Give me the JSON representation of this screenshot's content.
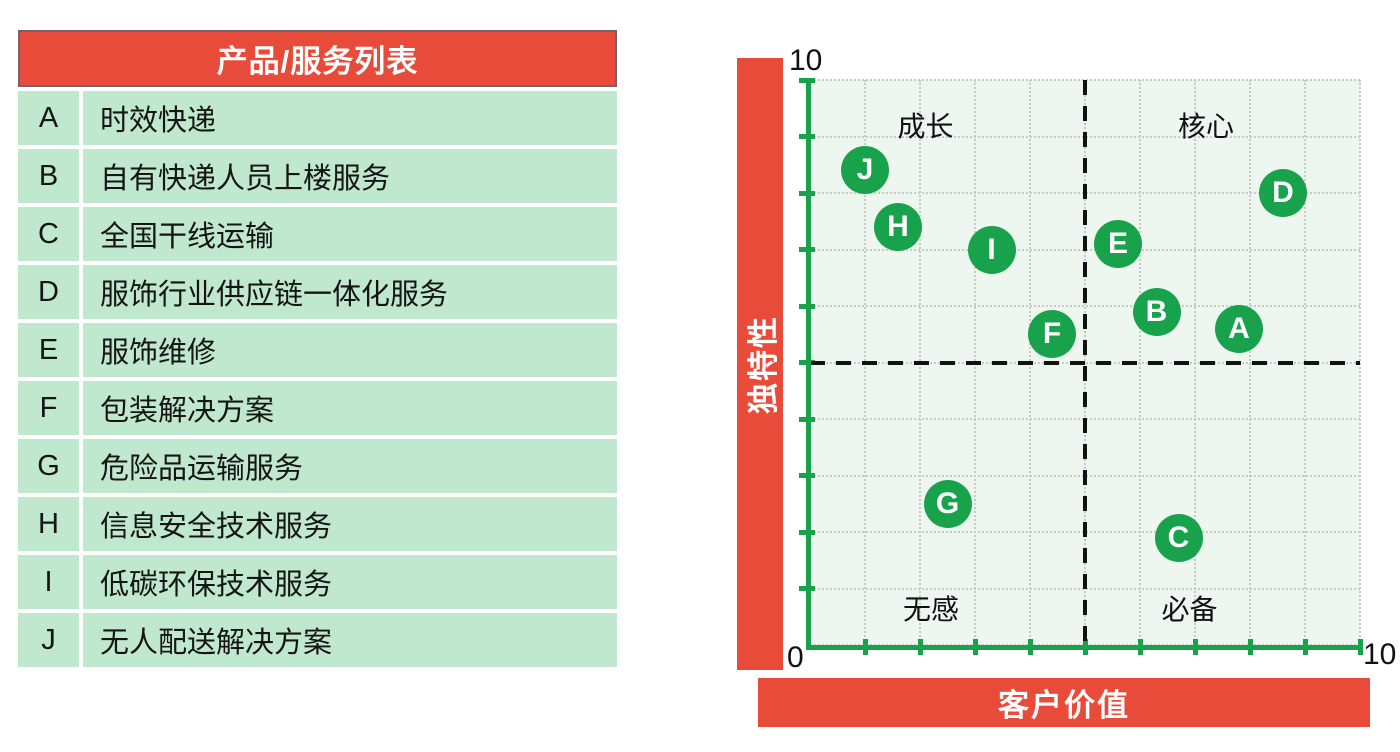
{
  "table": {
    "header": "产品/服务列表",
    "rows": [
      {
        "key": "A",
        "label": "时效快递"
      },
      {
        "key": "B",
        "label": "自有快递人员上楼服务"
      },
      {
        "key": "C",
        "label": "全国干线运输"
      },
      {
        "key": "D",
        "label": "服饰行业供应链一体化服务"
      },
      {
        "key": "E",
        "label": "服饰维修"
      },
      {
        "key": "F",
        "label": "包装解决方案"
      },
      {
        "key": "G",
        "label": "危险品运输服务"
      },
      {
        "key": "H",
        "label": "信息安全技术服务"
      },
      {
        "key": "I",
        "label": "低碳环保技术服务"
      },
      {
        "key": "J",
        "label": "无人配送解决方案"
      }
    ]
  },
  "chart_data": {
    "type": "scatter",
    "title": "",
    "xlabel": "客户价值",
    "ylabel": "独特性",
    "x_range": [
      0,
      10
    ],
    "y_range": [
      0,
      10
    ],
    "grid": true,
    "grid_step": 1,
    "tick_step": 1,
    "dividers": {
      "x": 5,
      "y": 5
    },
    "axis_end_labels": {
      "origin": "0",
      "x_max": "10",
      "y_max": "10"
    },
    "quadrant_labels": [
      {
        "text": "成长",
        "x": 2.1,
        "y": 9.2
      },
      {
        "text": "核心",
        "x": 7.2,
        "y": 9.2
      },
      {
        "text": "无感",
        "x": 2.2,
        "y": 0.65
      },
      {
        "text": "必备",
        "x": 6.9,
        "y": 0.65
      }
    ],
    "points": [
      {
        "label": "A",
        "x": 7.8,
        "y": 5.6
      },
      {
        "label": "B",
        "x": 6.3,
        "y": 5.9
      },
      {
        "label": "C",
        "x": 6.7,
        "y": 1.9
      },
      {
        "label": "D",
        "x": 8.6,
        "y": 8.0
      },
      {
        "label": "E",
        "x": 5.6,
        "y": 7.1
      },
      {
        "label": "F",
        "x": 4.4,
        "y": 5.5
      },
      {
        "label": "G",
        "x": 2.5,
        "y": 2.5
      },
      {
        "label": "H",
        "x": 1.6,
        "y": 7.4
      },
      {
        "label": "I",
        "x": 3.3,
        "y": 7.0
      },
      {
        "label": "J",
        "x": 1.0,
        "y": 8.4
      }
    ]
  },
  "colors": {
    "red": "#E84B3A",
    "green": "#18A24B",
    "row_green": "#BFE8CE",
    "plot_bg": "#EDF7F0",
    "grid": "#C6CBC7",
    "divider": "#111111",
    "header_border": "#75606F"
  }
}
